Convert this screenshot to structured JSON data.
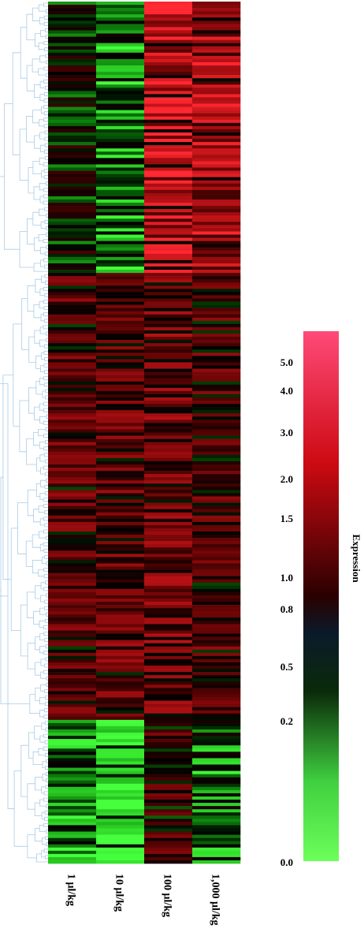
{
  "chart_data": {
    "type": "heatmap",
    "title": "",
    "columns": [
      "1 μl/kg",
      "10 μl/kg",
      "100 μl/kg",
      "1,000 μl/kg"
    ],
    "row_count": 270,
    "clusters": [
      {
        "rows": 85,
        "means": [
          1.0,
          0.6,
          2.6,
          2.2
        ]
      },
      {
        "rows": 140,
        "means": [
          1.5,
          1.6,
          1.7,
          1.5
        ]
      },
      {
        "rows": 45,
        "means": [
          0.55,
          0.3,
          1.35,
          0.65
        ]
      }
    ],
    "colorbar": {
      "label": "Expression",
      "ticks": [
        "5.0",
        "4.0",
        "3.0",
        "2.0",
        "1.5",
        "1.0",
        "0.8",
        "0.5",
        "0.2",
        "0.0"
      ],
      "tick_values": [
        5.0,
        4.0,
        3.0,
        2.0,
        1.5,
        1.0,
        0.8,
        0.5,
        0.2,
        0.0
      ],
      "range": [
        0.0,
        5.5
      ],
      "colors": {
        "high": "#ff2a36",
        "mid": "#000000",
        "low": "#55ff4a"
      }
    },
    "dendrogram_color": "#a9cbe6"
  }
}
